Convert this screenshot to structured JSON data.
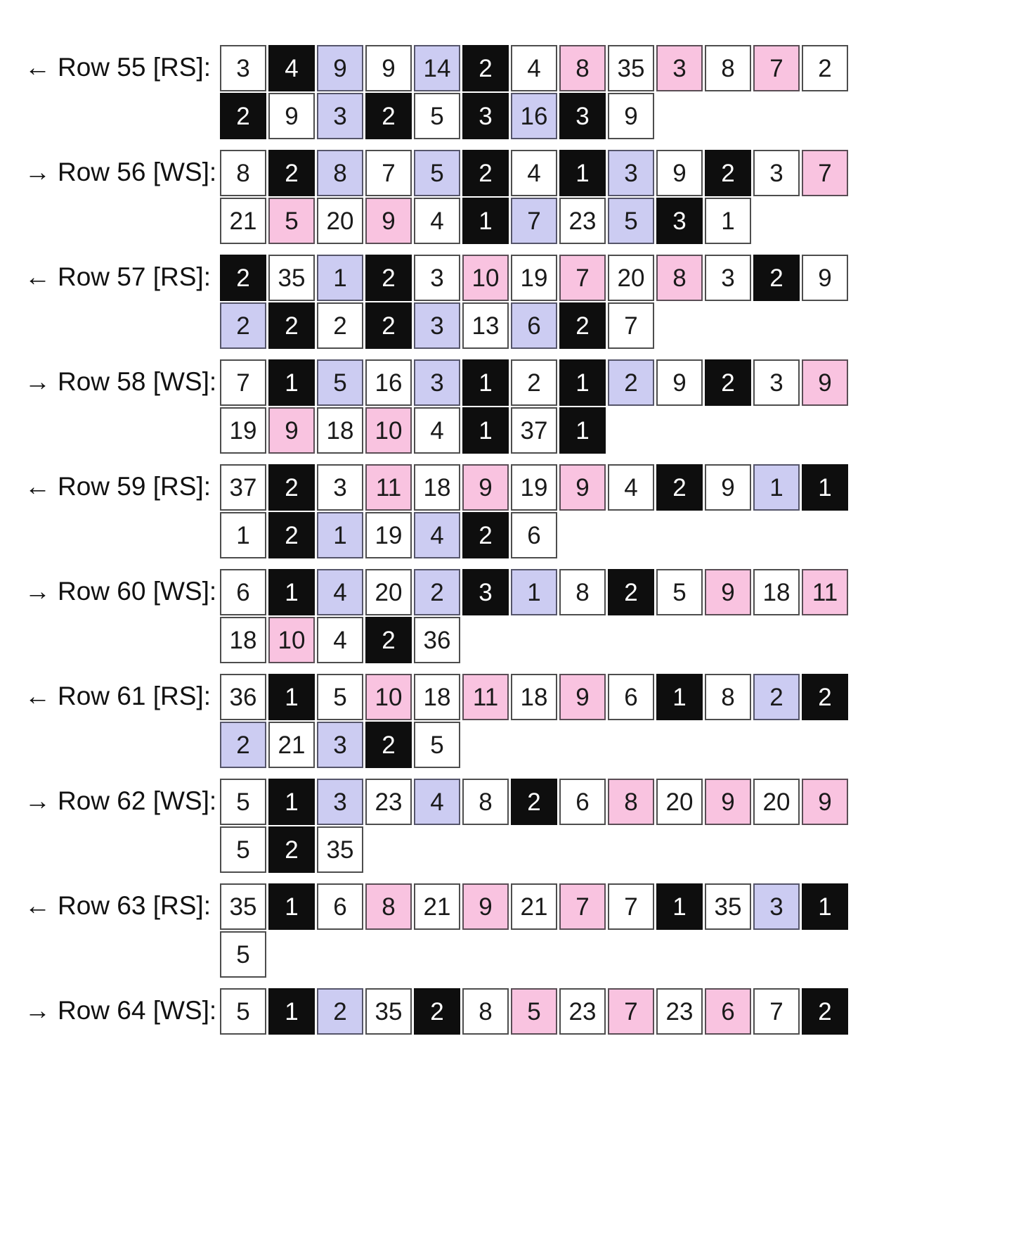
{
  "palette": {
    "white": {
      "bg": "#ffffff",
      "text": "#1a1a1a",
      "border": "#4d4d4d"
    },
    "black": {
      "bg": "#0e0e0e",
      "text": "#ffffff",
      "border": "#0e0e0e"
    },
    "blue": {
      "bg": "#ccccf2",
      "text": "#1a1a1a",
      "border": "#55556a"
    },
    "pink": {
      "bg": "#f9c3e0",
      "text": "#1a1a1a",
      "border": "#5a4d55"
    }
  },
  "rows": [
    {
      "number": 55,
      "side": "RS",
      "arrow": "←",
      "label_text": "Row 55 [RS]:",
      "cells": [
        [
          "3",
          "white"
        ],
        [
          "4",
          "black"
        ],
        [
          "9",
          "blue"
        ],
        [
          "9",
          "white"
        ],
        [
          "14",
          "blue"
        ],
        [
          "2",
          "black"
        ],
        [
          "4",
          "white"
        ],
        [
          "8",
          "pink"
        ],
        [
          "35",
          "white"
        ],
        [
          "3",
          "pink"
        ],
        [
          "8",
          "white"
        ],
        [
          "7",
          "pink"
        ],
        [
          "2",
          "white"
        ],
        [
          "2",
          "black"
        ],
        [
          "9",
          "white"
        ],
        [
          "3",
          "blue"
        ],
        [
          "2",
          "black"
        ],
        [
          "5",
          "white"
        ],
        [
          "3",
          "black"
        ],
        [
          "16",
          "blue"
        ],
        [
          "3",
          "black"
        ],
        [
          "9",
          "white"
        ]
      ]
    },
    {
      "number": 56,
      "side": "WS",
      "arrow": "→",
      "label_text": "Row 56 [WS]:",
      "cells": [
        [
          "8",
          "white"
        ],
        [
          "2",
          "black"
        ],
        [
          "8",
          "blue"
        ],
        [
          "7",
          "white"
        ],
        [
          "5",
          "blue"
        ],
        [
          "2",
          "black"
        ],
        [
          "4",
          "white"
        ],
        [
          "1",
          "black"
        ],
        [
          "3",
          "blue"
        ],
        [
          "9",
          "white"
        ],
        [
          "2",
          "black"
        ],
        [
          "3",
          "white"
        ],
        [
          "7",
          "pink"
        ],
        [
          "21",
          "white"
        ],
        [
          "5",
          "pink"
        ],
        [
          "20",
          "white"
        ],
        [
          "9",
          "pink"
        ],
        [
          "4",
          "white"
        ],
        [
          "1",
          "black"
        ],
        [
          "7",
          "blue"
        ],
        [
          "23",
          "white"
        ],
        [
          "5",
          "blue"
        ],
        [
          "3",
          "black"
        ],
        [
          "1",
          "white"
        ]
      ]
    },
    {
      "number": 57,
      "side": "RS",
      "arrow": "←",
      "label_text": "Row 57 [RS]:",
      "cells": [
        [
          "2",
          "black"
        ],
        [
          "35",
          "white"
        ],
        [
          "1",
          "blue"
        ],
        [
          "2",
          "black"
        ],
        [
          "3",
          "white"
        ],
        [
          "10",
          "pink"
        ],
        [
          "19",
          "white"
        ],
        [
          "7",
          "pink"
        ],
        [
          "20",
          "white"
        ],
        [
          "8",
          "pink"
        ],
        [
          "3",
          "white"
        ],
        [
          "2",
          "black"
        ],
        [
          "9",
          "white"
        ],
        [
          "2",
          "blue"
        ],
        [
          "2",
          "black"
        ],
        [
          "2",
          "white"
        ],
        [
          "2",
          "black"
        ],
        [
          "3",
          "blue"
        ],
        [
          "13",
          "white"
        ],
        [
          "6",
          "blue"
        ],
        [
          "2",
          "black"
        ],
        [
          "7",
          "white"
        ]
      ]
    },
    {
      "number": 58,
      "side": "WS",
      "arrow": "→",
      "label_text": "Row 58 [WS]:",
      "cells": [
        [
          "7",
          "white"
        ],
        [
          "1",
          "black"
        ],
        [
          "5",
          "blue"
        ],
        [
          "16",
          "white"
        ],
        [
          "3",
          "blue"
        ],
        [
          "1",
          "black"
        ],
        [
          "2",
          "white"
        ],
        [
          "1",
          "black"
        ],
        [
          "2",
          "blue"
        ],
        [
          "9",
          "white"
        ],
        [
          "2",
          "black"
        ],
        [
          "3",
          "white"
        ],
        [
          "9",
          "pink"
        ],
        [
          "19",
          "white"
        ],
        [
          "9",
          "pink"
        ],
        [
          "18",
          "white"
        ],
        [
          "10",
          "pink"
        ],
        [
          "4",
          "white"
        ],
        [
          "1",
          "black"
        ],
        [
          "37",
          "white"
        ],
        [
          "1",
          "black"
        ]
      ]
    },
    {
      "number": 59,
      "side": "RS",
      "arrow": "←",
      "label_text": "Row 59 [RS]:",
      "cells": [
        [
          "37",
          "white"
        ],
        [
          "2",
          "black"
        ],
        [
          "3",
          "white"
        ],
        [
          "11",
          "pink"
        ],
        [
          "18",
          "white"
        ],
        [
          "9",
          "pink"
        ],
        [
          "19",
          "white"
        ],
        [
          "9",
          "pink"
        ],
        [
          "4",
          "white"
        ],
        [
          "2",
          "black"
        ],
        [
          "9",
          "white"
        ],
        [
          "1",
          "blue"
        ],
        [
          "1",
          "black"
        ],
        [
          "1",
          "white"
        ],
        [
          "2",
          "black"
        ],
        [
          "1",
          "blue"
        ],
        [
          "19",
          "white"
        ],
        [
          "4",
          "blue"
        ],
        [
          "2",
          "black"
        ],
        [
          "6",
          "white"
        ]
      ]
    },
    {
      "number": 60,
      "side": "WS",
      "arrow": "→",
      "label_text": "Row 60 [WS]:",
      "cells": [
        [
          "6",
          "white"
        ],
        [
          "1",
          "black"
        ],
        [
          "4",
          "blue"
        ],
        [
          "20",
          "white"
        ],
        [
          "2",
          "blue"
        ],
        [
          "3",
          "black"
        ],
        [
          "1",
          "blue"
        ],
        [
          "8",
          "white"
        ],
        [
          "2",
          "black"
        ],
        [
          "5",
          "white"
        ],
        [
          "9",
          "pink"
        ],
        [
          "18",
          "white"
        ],
        [
          "11",
          "pink"
        ],
        [
          "18",
          "white"
        ],
        [
          "10",
          "pink"
        ],
        [
          "4",
          "white"
        ],
        [
          "2",
          "black"
        ],
        [
          "36",
          "white"
        ]
      ]
    },
    {
      "number": 61,
      "side": "RS",
      "arrow": "←",
      "label_text": "Row 61 [RS]:",
      "cells": [
        [
          "36",
          "white"
        ],
        [
          "1",
          "black"
        ],
        [
          "5",
          "white"
        ],
        [
          "10",
          "pink"
        ],
        [
          "18",
          "white"
        ],
        [
          "11",
          "pink"
        ],
        [
          "18",
          "white"
        ],
        [
          "9",
          "pink"
        ],
        [
          "6",
          "white"
        ],
        [
          "1",
          "black"
        ],
        [
          "8",
          "white"
        ],
        [
          "2",
          "blue"
        ],
        [
          "2",
          "black"
        ],
        [
          "2",
          "blue"
        ],
        [
          "21",
          "white"
        ],
        [
          "3",
          "blue"
        ],
        [
          "2",
          "black"
        ],
        [
          "5",
          "white"
        ]
      ]
    },
    {
      "number": 62,
      "side": "WS",
      "arrow": "→",
      "label_text": "Row 62 [WS]:",
      "cells": [
        [
          "5",
          "white"
        ],
        [
          "1",
          "black"
        ],
        [
          "3",
          "blue"
        ],
        [
          "23",
          "white"
        ],
        [
          "4",
          "blue"
        ],
        [
          "8",
          "white"
        ],
        [
          "2",
          "black"
        ],
        [
          "6",
          "white"
        ],
        [
          "8",
          "pink"
        ],
        [
          "20",
          "white"
        ],
        [
          "9",
          "pink"
        ],
        [
          "20",
          "white"
        ],
        [
          "9",
          "pink"
        ],
        [
          "5",
          "white"
        ],
        [
          "2",
          "black"
        ],
        [
          "35",
          "white"
        ]
      ]
    },
    {
      "number": 63,
      "side": "RS",
      "arrow": "←",
      "label_text": "Row 63 [RS]:",
      "cells": [
        [
          "35",
          "white"
        ],
        [
          "1",
          "black"
        ],
        [
          "6",
          "white"
        ],
        [
          "8",
          "pink"
        ],
        [
          "21",
          "white"
        ],
        [
          "9",
          "pink"
        ],
        [
          "21",
          "white"
        ],
        [
          "7",
          "pink"
        ],
        [
          "7",
          "white"
        ],
        [
          "1",
          "black"
        ],
        [
          "35",
          "white"
        ],
        [
          "3",
          "blue"
        ],
        [
          "1",
          "black"
        ],
        [
          "5",
          "white"
        ]
      ]
    },
    {
      "number": 64,
      "side": "WS",
      "arrow": "→",
      "label_text": "Row 64 [WS]:",
      "cells": [
        [
          "5",
          "white"
        ],
        [
          "1",
          "black"
        ],
        [
          "2",
          "blue"
        ],
        [
          "35",
          "white"
        ],
        [
          "2",
          "black"
        ],
        [
          "8",
          "white"
        ],
        [
          "5",
          "pink"
        ],
        [
          "23",
          "white"
        ],
        [
          "7",
          "pink"
        ],
        [
          "23",
          "white"
        ],
        [
          "6",
          "pink"
        ],
        [
          "7",
          "white"
        ],
        [
          "2",
          "black"
        ]
      ]
    }
  ]
}
